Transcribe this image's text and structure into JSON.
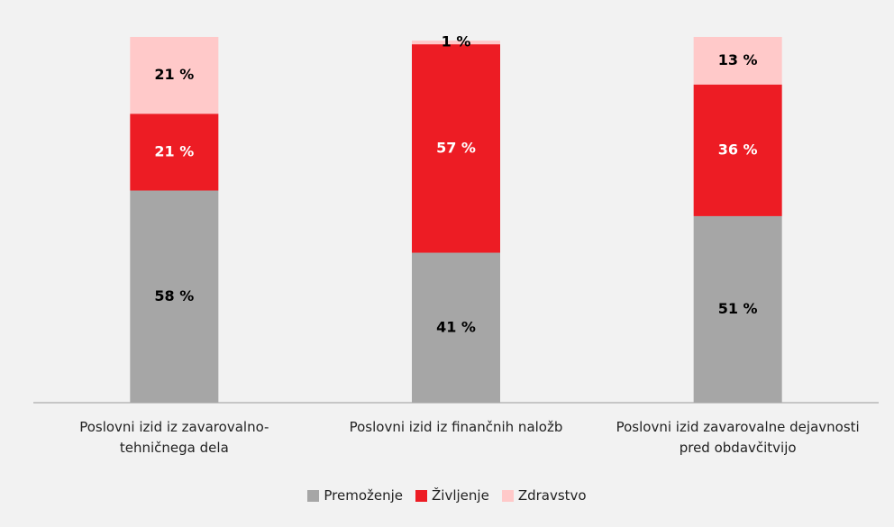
{
  "chart_data": {
    "type": "stacked_bar",
    "categories": [
      "Poslovni izid iz zavarovalno-tehničnega dela",
      "Poslovni izid iz finančnih naložb",
      "Poslovni izid zavarovalne dejavnosti pred obdavčitvijo"
    ],
    "series": [
      {
        "name": "Premoženje",
        "color": "#a6a6a6",
        "label_color": "#000000",
        "values": [
          58,
          41,
          51
        ],
        "value_labels": [
          "58 %",
          "41 %",
          "51 %"
        ]
      },
      {
        "name": "Življenje",
        "color": "#ed1c24",
        "label_color": "#ffffff",
        "values": [
          21,
          57,
          36
        ],
        "value_labels": [
          "21 %",
          "57 %",
          "36 %"
        ]
      },
      {
        "name": "Zdravstvo",
        "color": "#ffc9c9",
        "label_color": "#000000",
        "values": [
          21,
          1,
          13
        ],
        "value_labels": [
          "21 %",
          "1 %",
          "13 %"
        ]
      }
    ],
    "ylim": [
      0,
      100
    ],
    "legend": "bottom"
  }
}
